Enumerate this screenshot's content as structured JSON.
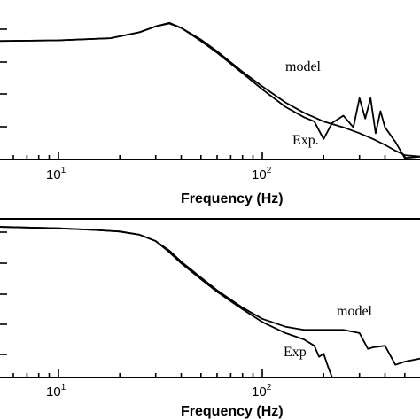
{
  "chart_data": [
    {
      "type": "line",
      "xlabel": "Frequency (Hz)",
      "xscale": "log",
      "xlim": [
        5,
        700
      ],
      "ylim": [
        0,
        1
      ],
      "x_tick_labels": [
        {
          "base": "10",
          "exp": "1",
          "value": 10
        },
        {
          "base": "10",
          "exp": "2",
          "value": 100
        }
      ],
      "grid": false,
      "series": [
        {
          "name": "model",
          "x": [
            5,
            10,
            18,
            25,
            30,
            35,
            40,
            50,
            60,
            80,
            100,
            130,
            160,
            200,
            250,
            300,
            350,
            400,
            450,
            500,
            600,
            700
          ],
          "values": [
            0.81,
            0.815,
            0.83,
            0.87,
            0.91,
            0.93,
            0.9,
            0.82,
            0.74,
            0.6,
            0.5,
            0.39,
            0.32,
            0.26,
            0.22,
            0.18,
            0.14,
            0.1,
            0.06,
            0.03,
            0.02,
            0.01
          ]
        },
        {
          "name": "Exp.",
          "x": [
            5,
            10,
            18,
            25,
            30,
            35,
            40,
            50,
            60,
            80,
            100,
            130,
            160,
            180,
            200,
            220,
            250,
            280,
            300,
            320,
            340,
            360,
            380,
            400,
            450,
            500,
            600,
            700
          ],
          "values": [
            0.81,
            0.815,
            0.83,
            0.87,
            0.91,
            0.935,
            0.9,
            0.81,
            0.73,
            0.59,
            0.48,
            0.36,
            0.29,
            0.26,
            0.14,
            0.25,
            0.3,
            0.22,
            0.42,
            0.28,
            0.42,
            0.18,
            0.33,
            0.22,
            0.12,
            0.01,
            0.02,
            0.03
          ]
        }
      ],
      "annotations": {
        "model": "model",
        "exp": "Exp."
      }
    },
    {
      "type": "line",
      "xlabel": "Frequency (Hz)",
      "xscale": "log",
      "xlim": [
        5,
        700
      ],
      "ylim": [
        0,
        1
      ],
      "x_tick_labels": [
        {
          "base": "10",
          "exp": "1",
          "value": 10
        },
        {
          "base": "10",
          "exp": "2",
          "value": 100
        }
      ],
      "grid": false,
      "series": [
        {
          "name": "model",
          "x": [
            5,
            10,
            15,
            20,
            25,
            30,
            35,
            40,
            50,
            60,
            80,
            100,
            130,
            160,
            200,
            250,
            300,
            330,
            350,
            400,
            450,
            500,
            600,
            700
          ],
          "values": [
            0.95,
            0.94,
            0.93,
            0.92,
            0.9,
            0.86,
            0.8,
            0.73,
            0.63,
            0.55,
            0.44,
            0.37,
            0.32,
            0.3,
            0.3,
            0.3,
            0.28,
            0.18,
            0.19,
            0.2,
            0.08,
            0.1,
            0.12,
            0.13
          ]
        },
        {
          "name": "Exp",
          "x": [
            5,
            10,
            15,
            20,
            25,
            30,
            35,
            40,
            50,
            60,
            80,
            100,
            130,
            160,
            180,
            190,
            200,
            210,
            220
          ],
          "values": [
            0.95,
            0.94,
            0.93,
            0.92,
            0.9,
            0.86,
            0.79,
            0.72,
            0.62,
            0.54,
            0.43,
            0.35,
            0.28,
            0.24,
            0.2,
            0.13,
            0.15,
            0.07,
            0.0
          ]
        }
      ],
      "annotations": {
        "model": "model",
        "exp": "Exp"
      }
    }
  ]
}
